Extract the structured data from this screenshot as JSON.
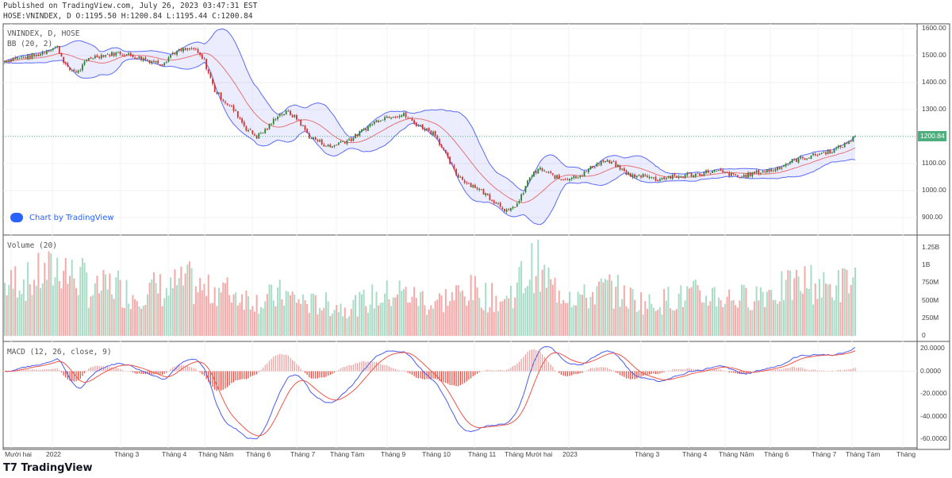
{
  "header": {
    "published": "Published on TradingView.com, July 26, 2023 03:47:31 EST",
    "ohlc": "HOSE:VNINDEX, D O:1195.50 H:1200.84 L:1195.44 C:1200.84"
  },
  "legend": {
    "symbol": "VNINDEX, D, HOSE",
    "bb": "BB (20, 2)",
    "volume": "Volume (20)",
    "macd": "MACD (12, 26, close, 9)"
  },
  "watermark": "Chart by TradingView",
  "brand": "TradingView",
  "colors": {
    "up": "#2e7d32",
    "down": "#d32f2f",
    "vol_up": "#a8dcc6",
    "vol_down": "#f5a9a9",
    "band": "#5c6bf5",
    "basis": "#e57373",
    "macd": "#4a5cf0",
    "signal": "#f0554a",
    "last": "#4caf7d"
  },
  "chart_data": [
    {
      "type": "candlestick",
      "title": "VNINDEX, D, HOSE",
      "resolution": "weekly approximation of daily closes",
      "start": "2021-12",
      "last_price": "1200.84",
      "price_ticks": [
        "1600.00",
        "1500.00",
        "1400.00",
        "1300.00",
        "1100.00",
        "1000.00",
        "900.00"
      ],
      "ylim": [
        880,
        1610
      ],
      "closes": [
        1480,
        1490,
        1495,
        1500,
        1520,
        1530,
        1450,
        1440,
        1490,
        1500,
        1505,
        1510,
        1500,
        1490,
        1480,
        1470,
        1510,
        1520,
        1525,
        1480,
        1370,
        1330,
        1290,
        1230,
        1200,
        1230,
        1280,
        1290,
        1260,
        1200,
        1180,
        1160,
        1180,
        1190,
        1220,
        1250,
        1270,
        1280,
        1280,
        1250,
        1230,
        1210,
        1130,
        1060,
        1030,
        1010,
        980,
        950,
        920,
        960,
        1050,
        1080,
        1060,
        1040,
        1050,
        1060,
        1090,
        1110,
        1100,
        1070,
        1050,
        1060,
        1040,
        1050,
        1050,
        1060,
        1060,
        1070,
        1070,
        1060,
        1050,
        1060,
        1070,
        1075,
        1090,
        1110,
        1120,
        1130,
        1140,
        1150,
        1170,
        1200
      ]
    },
    {
      "type": "bar",
      "title": "Volume (20)",
      "unit": "M",
      "ticks": [
        "1.25B",
        "1B",
        "750M",
        "500M",
        "250M",
        "0"
      ],
      "values": [
        800,
        900,
        850,
        950,
        1000,
        1100,
        950,
        900,
        700,
        750,
        800,
        700,
        650,
        700,
        750,
        700,
        800,
        850,
        750,
        700,
        750,
        700,
        650,
        600,
        550,
        600,
        650,
        600,
        550,
        500,
        500,
        480,
        450,
        500,
        550,
        600,
        650,
        700,
        650,
        600,
        500,
        550,
        600,
        650,
        700,
        650,
        600,
        550,
        700,
        900,
        1100,
        900,
        750,
        700,
        650,
        600,
        700,
        750,
        700,
        600,
        550,
        500,
        550,
        600,
        600,
        650,
        600,
        650,
        600,
        600,
        600,
        650,
        700,
        700,
        750,
        800,
        850,
        800,
        750,
        800,
        850,
        900
      ]
    },
    {
      "type": "line",
      "title": "MACD (12, 26, close, 9)",
      "ticks": [
        "20.0000",
        "0.0000",
        "-20.0000",
        "-40.0000",
        "-60.0000"
      ],
      "ylim": [
        -65,
        25
      ],
      "series": [
        "MACD",
        "Signal",
        "Histogram"
      ]
    }
  ],
  "time_ticks": [
    "Mười hai",
    "2022",
    "Tháng 3",
    "Tháng 4",
    "Tháng Năm",
    "Tháng 6",
    "Tháng 7",
    "Tháng Tám",
    "Tháng 9",
    "Tháng 10",
    "Tháng 11",
    "Tháng Mười hai",
    "2023",
    "Tháng 3",
    "Tháng 4",
    "Tháng Năm",
    "Tháng 6",
    "Tháng 7",
    "Tháng Tám",
    "Tháng"
  ]
}
